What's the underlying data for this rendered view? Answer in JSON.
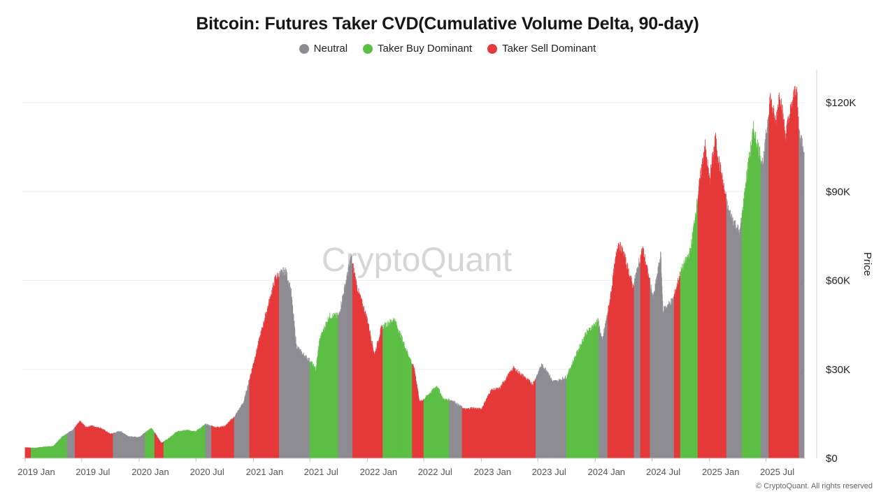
{
  "chart_data": {
    "type": "bar",
    "title": "Bitcoin: Futures Taker CVD(Cumulative Volume Delta, 90-day)",
    "ylabel": "Price",
    "y_axis_side": "right",
    "ylim": [
      0,
      125000
    ],
    "y_ticks": [
      {
        "value": 0,
        "label": "$0"
      },
      {
        "value": 30000,
        "label": "$30K"
      },
      {
        "value": 60000,
        "label": "$60K"
      },
      {
        "value": 90000,
        "label": "$90K"
      },
      {
        "value": 120000,
        "label": "$120K"
      }
    ],
    "x_ticks": [
      "2019 Jan",
      "2019 Jul",
      "2020 Jan",
      "2020 Jul",
      "2021 Jan",
      "2021 Jul",
      "2022 Jan",
      "2022 Jul",
      "2023 Jan",
      "2023 Jul",
      "2024 Jan",
      "2024 Jul",
      "2025 Jan",
      "2025 Jul"
    ],
    "x_range": [
      "2019-01",
      "2025-10"
    ],
    "grid": true,
    "legend_position": "top-center",
    "legend": [
      {
        "name": "Neutral",
        "color": "#8e8c93"
      },
      {
        "name": "Taker Buy Dominant",
        "color": "#5cbf45"
      },
      {
        "name": "Taker Sell Dominant",
        "color": "#e5393a"
      }
    ],
    "price_points": [
      [
        "2019-01-01",
        3700
      ],
      [
        "2019-02-01",
        3500
      ],
      [
        "2019-03-01",
        3900
      ],
      [
        "2019-04-01",
        4100
      ],
      [
        "2019-05-01",
        7500
      ],
      [
        "2019-06-01",
        9500
      ],
      [
        "2019-06-26",
        12500
      ],
      [
        "2019-07-15",
        10500
      ],
      [
        "2019-08-01",
        11000
      ],
      [
        "2019-09-01",
        10200
      ],
      [
        "2019-10-01",
        8200
      ],
      [
        "2019-11-01",
        9200
      ],
      [
        "2019-12-01",
        7300
      ],
      [
        "2020-01-01",
        7200
      ],
      [
        "2020-02-10",
        10300
      ],
      [
        "2020-03-12",
        5200
      ],
      [
        "2020-04-01",
        6500
      ],
      [
        "2020-05-01",
        9000
      ],
      [
        "2020-06-01",
        9500
      ],
      [
        "2020-07-01",
        9200
      ],
      [
        "2020-08-01",
        11500
      ],
      [
        "2020-09-01",
        10500
      ],
      [
        "2020-10-01",
        10800
      ],
      [
        "2020-11-01",
        14000
      ],
      [
        "2020-12-01",
        19000
      ],
      [
        "2021-01-01",
        32000
      ],
      [
        "2021-02-01",
        45000
      ],
      [
        "2021-03-13",
        61000
      ],
      [
        "2021-04-14",
        63500
      ],
      [
        "2021-05-01",
        57000
      ],
      [
        "2021-05-19",
        38000
      ],
      [
        "2021-06-01",
        36000
      ],
      [
        "2021-07-01",
        33000
      ],
      [
        "2021-07-20",
        30000
      ],
      [
        "2021-08-01",
        40000
      ],
      [
        "2021-09-01",
        48000
      ],
      [
        "2021-10-01",
        48000
      ],
      [
        "2021-11-10",
        68000
      ],
      [
        "2021-12-01",
        57000
      ],
      [
        "2022-01-01",
        47000
      ],
      [
        "2022-01-24",
        35000
      ],
      [
        "2022-02-15",
        44000
      ],
      [
        "2022-03-28",
        47000
      ],
      [
        "2022-05-01",
        38000
      ],
      [
        "2022-06-01",
        30000
      ],
      [
        "2022-06-18",
        19000
      ],
      [
        "2022-07-01",
        20000
      ],
      [
        "2022-08-13",
        24500
      ],
      [
        "2022-09-01",
        20000
      ],
      [
        "2022-10-01",
        19500
      ],
      [
        "2022-11-10",
        16500
      ],
      [
        "2022-12-01",
        17000
      ],
      [
        "2023-01-01",
        16600
      ],
      [
        "2023-02-01",
        23000
      ],
      [
        "2023-03-01",
        23500
      ],
      [
        "2023-03-15",
        26000
      ],
      [
        "2023-04-14",
        30500
      ],
      [
        "2023-05-01",
        29000
      ],
      [
        "2023-06-15",
        25000
      ],
      [
        "2023-07-13",
        31500
      ],
      [
        "2023-08-01",
        29500
      ],
      [
        "2023-08-17",
        26000
      ],
      [
        "2023-09-01",
        26000
      ],
      [
        "2023-10-01",
        27500
      ],
      [
        "2023-11-01",
        35000
      ],
      [
        "2023-12-01",
        42000
      ],
      [
        "2024-01-11",
        46500
      ],
      [
        "2024-01-23",
        39500
      ],
      [
        "2024-02-15",
        52000
      ],
      [
        "2024-03-14",
        73000
      ],
      [
        "2024-04-01",
        69000
      ],
      [
        "2024-05-01",
        58000
      ],
      [
        "2024-06-01",
        71000
      ],
      [
        "2024-07-05",
        54000
      ],
      [
        "2024-07-29",
        69000
      ],
      [
        "2024-08-05",
        50000
      ],
      [
        "2024-09-06",
        53500
      ],
      [
        "2024-10-01",
        63000
      ],
      [
        "2024-11-01",
        70000
      ],
      [
        "2024-12-17",
        106000
      ],
      [
        "2025-01-01",
        94000
      ],
      [
        "2025-01-20",
        108000
      ],
      [
        "2025-02-01",
        100000
      ],
      [
        "2025-03-01",
        84000
      ],
      [
        "2025-04-08",
        76000
      ],
      [
        "2025-05-01",
        96000
      ],
      [
        "2025-05-22",
        111000
      ],
      [
        "2025-06-22",
        99000
      ],
      [
        "2025-07-14",
        122000
      ],
      [
        "2025-08-01",
        113000
      ],
      [
        "2025-08-14",
        124000
      ],
      [
        "2025-09-01",
        109000
      ],
      [
        "2025-10-06",
        126000
      ],
      [
        "2025-10-15",
        110000
      ],
      [
        "2025-10-31",
        105000
      ]
    ],
    "regimes": [
      [
        "2019-01-01",
        "2019-01-20",
        "Taker Sell Dominant"
      ],
      [
        "2019-01-20",
        "2019-05-15",
        "Taker Buy Dominant"
      ],
      [
        "2019-05-15",
        "2019-06-10",
        "Neutral"
      ],
      [
        "2019-06-10",
        "2019-10-10",
        "Taker Sell Dominant"
      ],
      [
        "2019-10-10",
        "2020-01-20",
        "Neutral"
      ],
      [
        "2020-01-20",
        "2020-02-20",
        "Taker Buy Dominant"
      ],
      [
        "2020-02-20",
        "2020-03-20",
        "Taker Sell Dominant"
      ],
      [
        "2020-03-20",
        "2020-08-01",
        "Taker Buy Dominant"
      ],
      [
        "2020-08-01",
        "2020-08-20",
        "Neutral"
      ],
      [
        "2020-08-20",
        "2020-11-01",
        "Taker Sell Dominant"
      ],
      [
        "2020-11-01",
        "2020-12-20",
        "Neutral"
      ],
      [
        "2020-12-20",
        "2021-03-25",
        "Taker Sell Dominant"
      ],
      [
        "2021-03-25",
        "2021-07-01",
        "Neutral"
      ],
      [
        "2021-07-01",
        "2021-09-30",
        "Taker Buy Dominant"
      ],
      [
        "2021-09-30",
        "2021-11-15",
        "Neutral"
      ],
      [
        "2021-11-15",
        "2022-02-20",
        "Taker Sell Dominant"
      ],
      [
        "2022-02-20",
        "2022-05-25",
        "Taker Buy Dominant"
      ],
      [
        "2022-05-25",
        "2022-07-01",
        "Taker Sell Dominant"
      ],
      [
        "2022-07-01",
        "2022-09-20",
        "Taker Buy Dominant"
      ],
      [
        "2022-09-20",
        "2022-11-01",
        "Neutral"
      ],
      [
        "2022-11-01",
        "2023-06-25",
        "Taker Sell Dominant"
      ],
      [
        "2023-06-25",
        "2023-10-01",
        "Neutral"
      ],
      [
        "2023-10-01",
        "2024-01-12",
        "Taker Buy Dominant"
      ],
      [
        "2024-01-12",
        "2024-02-10",
        "Neutral"
      ],
      [
        "2024-02-10",
        "2024-05-05",
        "Taker Sell Dominant"
      ],
      [
        "2024-05-05",
        "2024-05-25",
        "Neutral"
      ],
      [
        "2024-05-25",
        "2024-06-25",
        "Taker Sell Dominant"
      ],
      [
        "2024-06-25",
        "2024-09-10",
        "Neutral"
      ],
      [
        "2024-09-10",
        "2024-09-30",
        "Taker Sell Dominant"
      ],
      [
        "2024-09-30",
        "2024-11-25",
        "Taker Buy Dominant"
      ],
      [
        "2024-11-25",
        "2025-02-25",
        "Taker Sell Dominant"
      ],
      [
        "2025-02-25",
        "2025-04-15",
        "Neutral"
      ],
      [
        "2025-04-15",
        "2025-06-15",
        "Taker Buy Dominant"
      ],
      [
        "2025-06-15",
        "2025-07-10",
        "Neutral"
      ],
      [
        "2025-07-10",
        "2025-10-15",
        "Taker Sell Dominant"
      ],
      [
        "2025-10-15",
        "2025-10-31",
        "Neutral"
      ]
    ]
  },
  "watermark": "CryptoQuant",
  "copyright": "© CryptoQuant. All rights reserved"
}
